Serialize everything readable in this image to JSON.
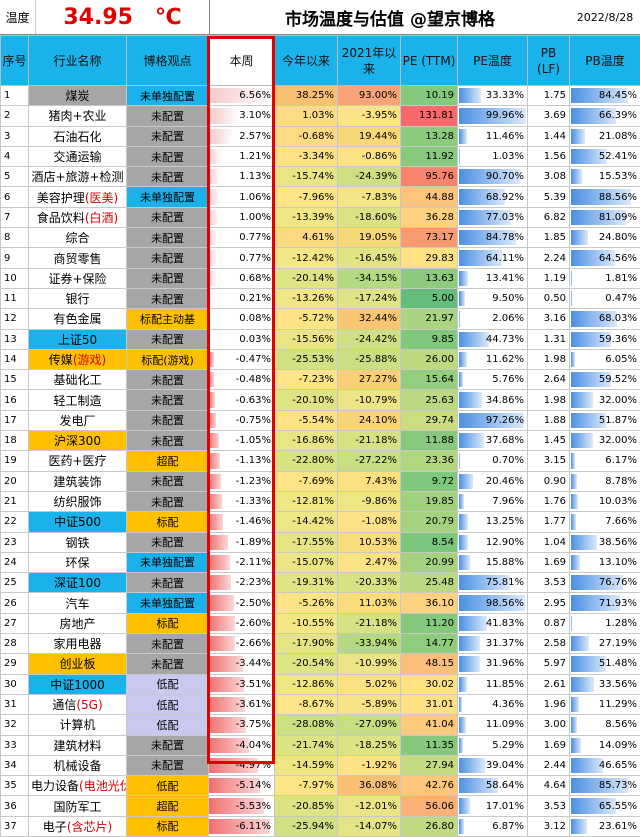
{
  "header": {
    "temp_label": "温度",
    "temp_value": "34.95",
    "temp_unit": "℃",
    "title": "市场温度与估值 @望京博格",
    "date": "2022/8/28"
  },
  "columns": {
    "seq": "序号",
    "industry": "行业名称",
    "view": "博格观点",
    "week": "本周",
    "ytd": "今年以来",
    "since2021": "2021年以来",
    "pe": "PE (TTM)",
    "pe_temp": "PE温度",
    "pb": "PB (LF)",
    "pb_temp": "PB温度"
  },
  "colors": {
    "cyan": "#1ab2ea",
    "orange": "#ffc000",
    "gray": "#a6a6a6",
    "lavender": "#c9c9ef",
    "red": "#e00000"
  },
  "rows": [
    {
      "seq": "1",
      "name": "煤炭",
      "name_red": "",
      "name_bg": "#a6a6a6",
      "view": "未单独配置",
      "view_bg": "#1ab2ea",
      "week": "6.56%",
      "week_v": 6.56,
      "ytd": "38.25%",
      "ytd_bg": "#f8c070",
      "s21": "93.00%",
      "s21_bg": "#f8a37a",
      "pe": "10.19",
      "pe_bg": "#84c97c",
      "pet": "33.33%",
      "pet_v": 33.33,
      "pb": "1.75",
      "pbt": "84.45%",
      "pbt_v": 84.45
    },
    {
      "seq": "2",
      "name": "猪肉+农业",
      "name_red": "",
      "name_bg": "#ffffff",
      "view": "未配置",
      "view_bg": "#a6a6a6",
      "week": "3.10%",
      "week_v": 3.1,
      "ytd": "1.03%",
      "ytd_bg": "#fddb83",
      "s21": "-3.95%",
      "s21_bg": "#fde387",
      "pe": "131.81",
      "pe_bg": "#f8696b",
      "pet": "99.96%",
      "pet_v": 99.96,
      "pb": "3.69",
      "pbt": "66.39%",
      "pbt_v": 66.39
    },
    {
      "seq": "3",
      "name": "石油石化",
      "name_red": "",
      "name_bg": "#ffffff",
      "view": "未配置",
      "view_bg": "#a6a6a6",
      "week": "2.57%",
      "week_v": 2.57,
      "ytd": "-0.68%",
      "ytd_bg": "#fddb83",
      "s21": "19.44%",
      "s21_bg": "#f7d878",
      "pe": "13.28",
      "pe_bg": "#8bcb7e",
      "pet": "11.46%",
      "pet_v": 11.46,
      "pb": "1.44",
      "pbt": "21.08%",
      "pbt_v": 21.08
    },
    {
      "seq": "4",
      "name": "交通运输",
      "name_red": "",
      "name_bg": "#ffffff",
      "view": "未配置",
      "view_bg": "#a6a6a6",
      "week": "1.21%",
      "week_v": 1.21,
      "ytd": "-3.34%",
      "ytd_bg": "#fde186",
      "s21": "-0.86%",
      "s21_bg": "#fde287",
      "pe": "11.92",
      "pe_bg": "#88ca7d",
      "pet": "1.03%",
      "pet_v": 1.03,
      "pb": "1.56",
      "pbt": "52.41%",
      "pbt_v": 52.41
    },
    {
      "seq": "5",
      "name": "酒店+旅游+检测",
      "name_red": "",
      "name_bg": "#ffffff",
      "view": "未配置",
      "view_bg": "#a6a6a6",
      "week": "1.13%",
      "week_v": 1.13,
      "ytd": "-15.74%",
      "ytd_bg": "#eae584",
      "s21": "-24.39%",
      "s21_bg": "#cfe083",
      "pe": "95.76",
      "pe_bg": "#f8846e",
      "pet": "90.70%",
      "pet_v": 90.7,
      "pb": "3.08",
      "pbt": "15.53%",
      "pbt_v": 15.53
    },
    {
      "seq": "6",
      "name": "美容护理",
      "name_red": "(医美)",
      "name_bg": "#ffffff",
      "view": "未单独配置",
      "view_bg": "#1ab2ea",
      "week": "1.06%",
      "week_v": 1.06,
      "ytd": "-7.96%",
      "ytd_bg": "#fde586",
      "s21": "-7.83%",
      "s21_bg": "#f2e487",
      "pe": "44.88",
      "pe_bg": "#fcc47c",
      "pet": "68.92%",
      "pet_v": 68.92,
      "pb": "5.39",
      "pbt": "88.56%",
      "pbt_v": 88.56
    },
    {
      "seq": "7",
      "name": "食品饮料",
      "name_red": "(白酒)",
      "name_bg": "#ffffff",
      "view": "未配置",
      "view_bg": "#a6a6a6",
      "week": "1.00%",
      "week_v": 1.0,
      "ytd": "-13.39%",
      "ytd_bg": "#f0e685",
      "s21": "-18.60%",
      "s21_bg": "#dce284",
      "pe": "36.28",
      "pe_bg": "#fdd17f",
      "pet": "77.03%",
      "pet_v": 77.03,
      "pb": "6.82",
      "pbt": "81.09%",
      "pbt_v": 81.09
    },
    {
      "seq": "8",
      "name": "综合",
      "name_red": "",
      "name_bg": "#ffffff",
      "view": "未配置",
      "view_bg": "#a6a6a6",
      "week": "0.77%",
      "week_v": 0.77,
      "ytd": "4.61%",
      "ytd_bg": "#fdd981",
      "s21": "19.05%",
      "s21_bg": "#f7d878",
      "pe": "73.17",
      "pe_bg": "#f99a72",
      "pet": "84.78%",
      "pet_v": 84.78,
      "pb": "1.85",
      "pbt": "24.80%",
      "pbt_v": 24.8
    },
    {
      "seq": "9",
      "name": "商贸零售",
      "name_red": "",
      "name_bg": "#ffffff",
      "view": "未配置",
      "view_bg": "#a6a6a6",
      "week": "0.77%",
      "week_v": 0.77,
      "ytd": "-12.42%",
      "ytd_bg": "#f2e685",
      "s21": "-16.45%",
      "s21_bg": "#e1e385",
      "pe": "29.83",
      "pe_bg": "#fde182",
      "pet": "64.11%",
      "pet_v": 64.11,
      "pb": "2.24",
      "pbt": "64.56%",
      "pbt_v": 64.56
    },
    {
      "seq": "10",
      "name": "证券+保险",
      "name_red": "",
      "name_bg": "#ffffff",
      "view": "未配置",
      "view_bg": "#a6a6a6",
      "week": "0.68%",
      "week_v": 0.68,
      "ytd": "-20.14%",
      "ytd_bg": "#dfe384",
      "s21": "-34.15%",
      "s21_bg": "#b3d981",
      "pe": "13.63",
      "pe_bg": "#8ccb7e",
      "pet": "13.41%",
      "pet_v": 13.41,
      "pb": "1.19",
      "pbt": "1.81%",
      "pbt_v": 1.81
    },
    {
      "seq": "11",
      "name": "银行",
      "name_red": "",
      "name_bg": "#ffffff",
      "view": "未配置",
      "view_bg": "#a6a6a6",
      "week": "0.21%",
      "week_v": 0.21,
      "ytd": "-13.26%",
      "ytd_bg": "#f0e685",
      "s21": "-17.24%",
      "s21_bg": "#dfe385",
      "pe": "5.00",
      "pe_bg": "#63be7b",
      "pet": "9.50%",
      "pet_v": 9.5,
      "pb": "0.50",
      "pbt": "0.47%",
      "pbt_v": 0.47
    },
    {
      "seq": "12",
      "name": "有色金属",
      "name_red": "",
      "name_bg": "#ffffff",
      "view": "标配主动基",
      "view_bg": "#ffc000",
      "week": "0.08%",
      "week_v": 0.08,
      "ytd": "-5.72%",
      "ytd_bg": "#fde386",
      "s21": "32.44%",
      "s21_bg": "#f8c675",
      "pe": "21.97",
      "pe_bg": "#aad480",
      "pet": "2.06%",
      "pet_v": 2.06,
      "pb": "3.16",
      "pbt": "68.03%",
      "pbt_v": 68.03
    },
    {
      "seq": "13",
      "name": "上证50",
      "name_red": "",
      "name_bg": "#1ab2ea",
      "view": "未配置",
      "view_bg": "#a6a6a6",
      "week": "0.03%",
      "week_v": 0.03,
      "ytd": "-15.56%",
      "ytd_bg": "#eae584",
      "s21": "-24.42%",
      "s21_bg": "#cfe083",
      "pe": "9.85",
      "pe_bg": "#80c87c",
      "pet": "44.73%",
      "pet_v": 44.73,
      "pb": "1.31",
      "pbt": "59.36%",
      "pbt_v": 59.36
    },
    {
      "seq": "14",
      "name": "传媒",
      "name_red": "(游戏)",
      "name_bg": "#ffc000",
      "view": "标配(游戏)",
      "view_bg": "#ffc000",
      "week": "-0.47%",
      "week_v": -0.47,
      "ytd": "-25.53%",
      "ytd_bg": "#d0e183",
      "s21": "-25.88%",
      "s21_bg": "#cbdf82",
      "pe": "26.00",
      "pe_bg": "#bcd980",
      "pet": "11.62%",
      "pet_v": 11.62,
      "pb": "1.98",
      "pbt": "6.05%",
      "pbt_v": 6.05
    },
    {
      "seq": "15",
      "name": "基础化工",
      "name_red": "",
      "name_bg": "#ffffff",
      "view": "未配置",
      "view_bg": "#a6a6a6",
      "week": "-0.48%",
      "week_v": -0.48,
      "ytd": "-7.23%",
      "ytd_bg": "#fde486",
      "s21": "27.27%",
      "s21_bg": "#f8cf77",
      "pe": "15.64",
      "pe_bg": "#93cd7e",
      "pet": "5.76%",
      "pet_v": 5.76,
      "pb": "2.64",
      "pbt": "59.52%",
      "pbt_v": 59.52
    },
    {
      "seq": "16",
      "name": "轻工制造",
      "name_red": "",
      "name_bg": "#ffffff",
      "view": "未配置",
      "view_bg": "#a6a6a6",
      "week": "-0.63%",
      "week_v": -0.63,
      "ytd": "-20.10%",
      "ytd_bg": "#dfe384",
      "s21": "-10.79%",
      "s21_bg": "#ece587",
      "pe": "25.63",
      "pe_bg": "#bad980",
      "pet": "34.86%",
      "pet_v": 34.86,
      "pb": "1.98",
      "pbt": "32.00%",
      "pbt_v": 32.0
    },
    {
      "seq": "17",
      "name": "发电厂",
      "name_red": "",
      "name_bg": "#ffffff",
      "view": "未配置",
      "view_bg": "#a6a6a6",
      "week": "-0.75%",
      "week_v": -0.75,
      "ytd": "-5.54%",
      "ytd_bg": "#fde386",
      "s21": "24.10%",
      "s21_bg": "#f8d377",
      "pe": "29.74",
      "pe_bg": "#cadd81",
      "pet": "97.26%",
      "pet_v": 97.26,
      "pb": "1.88",
      "pbt": "51.87%",
      "pbt_v": 51.87
    },
    {
      "seq": "18",
      "name": "沪深300",
      "name_red": "",
      "name_bg": "#ffc000",
      "view": "未配置",
      "view_bg": "#a6a6a6",
      "week": "-1.05%",
      "week_v": -1.05,
      "ytd": "-16.86%",
      "ytd_bg": "#e7e584",
      "s21": "-21.18%",
      "s21_bg": "#d6e184",
      "pe": "11.88",
      "pe_bg": "#88ca7d",
      "pet": "37.68%",
      "pet_v": 37.68,
      "pb": "1.45",
      "pbt": "32.00%",
      "pbt_v": 32.0
    },
    {
      "seq": "19",
      "name": "医药+医疗",
      "name_red": "",
      "name_bg": "#ffffff",
      "view": "超配",
      "view_bg": "#ffc000",
      "week": "-1.13%",
      "week_v": -1.13,
      "ytd": "-22.80%",
      "ytd_bg": "#d7e283",
      "s21": "-27.22%",
      "s21_bg": "#c7de82",
      "pe": "23.36",
      "pe_bg": "#b0d680",
      "pet": "0.70%",
      "pet_v": 0.7,
      "pb": "3.15",
      "pbt": "6.17%",
      "pbt_v": 6.17
    },
    {
      "seq": "20",
      "name": "建筑装饰",
      "name_red": "",
      "name_bg": "#ffffff",
      "view": "未配置",
      "view_bg": "#a6a6a6",
      "week": "-1.23%",
      "week_v": -1.23,
      "ytd": "-7.69%",
      "ytd_bg": "#fde486",
      "s21": "7.43%",
      "s21_bg": "#fae07f",
      "pe": "9.72",
      "pe_bg": "#80c87c",
      "pet": "20.46%",
      "pet_v": 20.46,
      "pb": "0.90",
      "pbt": "8.78%",
      "pbt_v": 8.78
    },
    {
      "seq": "21",
      "name": "纺织服饰",
      "name_red": "",
      "name_bg": "#ffffff",
      "view": "未配置",
      "view_bg": "#a6a6a6",
      "week": "-1.33%",
      "week_v": -1.33,
      "ytd": "-12.81%",
      "ytd_bg": "#f1e685",
      "s21": "-9.86%",
      "s21_bg": "#eee587",
      "pe": "19.85",
      "pe_bg": "#a1d17f",
      "pet": "7.96%",
      "pet_v": 7.96,
      "pb": "1.76",
      "pbt": "10.03%",
      "pbt_v": 10.03
    },
    {
      "seq": "22",
      "name": "中证500",
      "name_red": "",
      "name_bg": "#1ab2ea",
      "view": "标配",
      "view_bg": "#ffc000",
      "week": "-1.46%",
      "week_v": -1.46,
      "ytd": "-14.42%",
      "ytd_bg": "#eee585",
      "s21": "-1.08%",
      "s21_bg": "#fde287",
      "pe": "20.79",
      "pe_bg": "#a5d27f",
      "pet": "13.25%",
      "pet_v": 13.25,
      "pb": "1.77",
      "pbt": "7.66%",
      "pbt_v": 7.66
    },
    {
      "seq": "23",
      "name": "钢铁",
      "name_red": "",
      "name_bg": "#ffffff",
      "view": "未配置",
      "view_bg": "#a6a6a6",
      "week": "-1.89%",
      "week_v": -1.89,
      "ytd": "-17.55%",
      "ytd_bg": "#e5e484",
      "s21": "10.53%",
      "s21_bg": "#f9dd7d",
      "pe": "8.54",
      "pe_bg": "#7bc67c",
      "pet": "12.90%",
      "pet_v": 12.9,
      "pb": "1.04",
      "pbt": "38.56%",
      "pbt_v": 38.56
    },
    {
      "seq": "24",
      "name": "环保",
      "name_red": "",
      "name_bg": "#ffffff",
      "view": "未单独配置",
      "view_bg": "#1ab2ea",
      "week": "-2.11%",
      "week_v": -2.11,
      "ytd": "-15.07%",
      "ytd_bg": "#ece585",
      "s21": "2.47%",
      "s21_bg": "#fbe284",
      "pe": "20.99",
      "pe_bg": "#a6d27f",
      "pet": "15.88%",
      "pet_v": 15.88,
      "pb": "1.69",
      "pbt": "13.10%",
      "pbt_v": 13.1
    },
    {
      "seq": "25",
      "name": "深证100",
      "name_red": "",
      "name_bg": "#1ab2ea",
      "view": "未配置",
      "view_bg": "#a6a6a6",
      "week": "-2.23%",
      "week_v": -2.23,
      "ytd": "-19.31%",
      "ytd_bg": "#e1e384",
      "s21": "-20.33%",
      "s21_bg": "#d8e284",
      "pe": "25.48",
      "pe_bg": "#b9d880",
      "pet": "75.81%",
      "pet_v": 75.81,
      "pb": "3.53",
      "pbt": "76.76%",
      "pbt_v": 76.76
    },
    {
      "seq": "26",
      "name": "汽车",
      "name_red": "",
      "name_bg": "#ffffff",
      "view": "未单独配置",
      "view_bg": "#1ab2ea",
      "week": "-2.50%",
      "week_v": -2.5,
      "ytd": "-5.26%",
      "ytd_bg": "#fde386",
      "s21": "11.03%",
      "s21_bg": "#f9dd7c",
      "pe": "36.10",
      "pe_bg": "#fdd17f",
      "pet": "98.56%",
      "pet_v": 98.56,
      "pb": "2.95",
      "pbt": "71.93%",
      "pbt_v": 71.93
    },
    {
      "seq": "27",
      "name": "房地产",
      "name_red": "",
      "name_bg": "#ffffff",
      "view": "标配",
      "view_bg": "#ffc000",
      "week": "-2.60%",
      "week_v": -2.6,
      "ytd": "-10.55%",
      "ytd_bg": "#f5e686",
      "s21": "-21.18%",
      "s21_bg": "#d6e184",
      "pe": "11.20",
      "pe_bg": "#85c97d",
      "pet": "41.83%",
      "pet_v": 41.83,
      "pb": "0.87",
      "pbt": "1.28%",
      "pbt_v": 1.28
    },
    {
      "seq": "28",
      "name": "家用电器",
      "name_red": "",
      "name_bg": "#ffffff",
      "view": "未配置",
      "view_bg": "#a6a6a6",
      "week": "-2.66%",
      "week_v": -2.66,
      "ytd": "-17.90%",
      "ytd_bg": "#e4e484",
      "s21": "-33.94%",
      "s21_bg": "#b4d981",
      "pe": "14.77",
      "pe_bg": "#90cc7e",
      "pet": "31.37%",
      "pet_v": 31.37,
      "pb": "2.58",
      "pbt": "27.19%",
      "pbt_v": 27.19
    },
    {
      "seq": "29",
      "name": "创业板",
      "name_red": "",
      "name_bg": "#ffc000",
      "view": "未配置",
      "view_bg": "#a6a6a6",
      "week": "-3.44%",
      "week_v": -3.44,
      "ytd": "-20.54%",
      "ytd_bg": "#dee384",
      "s21": "-10.99%",
      "s21_bg": "#ece587",
      "pe": "48.15",
      "pe_bg": "#fbbf7b",
      "pet": "31.96%",
      "pet_v": 31.96,
      "pb": "5.97",
      "pbt": "51.48%",
      "pbt_v": 51.48
    },
    {
      "seq": "30",
      "name": "中证1000",
      "name_red": "",
      "name_bg": "#1ab2ea",
      "view": "低配",
      "view_bg": "#c9c9ef",
      "week": "-3.51%",
      "week_v": -3.51,
      "ytd": "-12.86%",
      "ytd_bg": "#f1e685",
      "s21": "5.02%",
      "s21_bg": "#fbe182",
      "pe": "30.02",
      "pe_bg": "#fde182",
      "pet": "11.85%",
      "pet_v": 11.85,
      "pb": "2.61",
      "pbt": "33.56%",
      "pbt_v": 33.56
    },
    {
      "seq": "31",
      "name": "通信",
      "name_red": "(5G)",
      "name_bg": "#ffffff",
      "view": "低配",
      "view_bg": "#c9c9ef",
      "week": "-3.61%",
      "week_v": -3.61,
      "ytd": "-8.67%",
      "ytd_bg": "#fce586",
      "s21": "-5.89%",
      "s21_bg": "#f7e387",
      "pe": "31.01",
      "pe_bg": "#fde082",
      "pet": "4.36%",
      "pet_v": 4.36,
      "pb": "1.96",
      "pbt": "11.29%",
      "pbt_v": 11.29
    },
    {
      "seq": "32",
      "name": "计算机",
      "name_red": "",
      "name_bg": "#ffffff",
      "view": "低配",
      "view_bg": "#c9c9ef",
      "week": "-3.75%",
      "week_v": -3.75,
      "ytd": "-28.08%",
      "ytd_bg": "#cae082",
      "s21": "-27.09%",
      "s21_bg": "#c8de82",
      "pe": "41.04",
      "pe_bg": "#fcc97d",
      "pet": "11.09%",
      "pet_v": 11.09,
      "pb": "3.00",
      "pbt": "8.56%",
      "pbt_v": 8.56
    },
    {
      "seq": "33",
      "name": "建筑材料",
      "name_red": "",
      "name_bg": "#ffffff",
      "view": "未配置",
      "view_bg": "#a6a6a6",
      "week": "-4.04%",
      "week_v": -4.04,
      "ytd": "-21.74%",
      "ytd_bg": "#dbe384",
      "s21": "-18.25%",
      "s21_bg": "#dde384",
      "pe": "11.35",
      "pe_bg": "#86c97d",
      "pet": "5.29%",
      "pet_v": 5.29,
      "pb": "1.69",
      "pbt": "14.09%",
      "pbt_v": 14.09
    },
    {
      "seq": "34",
      "name": "机械设备",
      "name_red": "",
      "name_bg": "#ffffff",
      "view": "未配置",
      "view_bg": "#a6a6a6",
      "week": "-4.97%",
      "week_v": -4.97,
      "ytd": "-14.59%",
      "ytd_bg": "#eee585",
      "s21": "-1.92%",
      "s21_bg": "#fde287",
      "pe": "27.94",
      "pe_bg": "#c4db81",
      "pet": "39.04%",
      "pet_v": 39.04,
      "pb": "2.44",
      "pbt": "46.65%",
      "pbt_v": 46.65
    },
    {
      "seq": "35",
      "name": "电力设备",
      "name_red": "(电池光伏)",
      "name_bg": "#ffffff",
      "view": "低配",
      "view_bg": "#ffc000",
      "week": "-5.14%",
      "week_v": -5.14,
      "ytd": "-7.97%",
      "ytd_bg": "#fde586",
      "s21": "36.08%",
      "s21_bg": "#f8c074",
      "pe": "42.76",
      "pe_bg": "#fcc67c",
      "pet": "58.64%",
      "pet_v": 58.64,
      "pb": "4.64",
      "pbt": "85.73%",
      "pbt_v": 85.73
    },
    {
      "seq": "36",
      "name": "国防军工",
      "name_red": "",
      "name_bg": "#ffffff",
      "view": "超配",
      "view_bg": "#ffc000",
      "week": "-5.53%",
      "week_v": -5.53,
      "ytd": "-20.85%",
      "ytd_bg": "#dde384",
      "s21": "-12.01%",
      "s21_bg": "#e9e486",
      "pe": "56.06",
      "pe_bg": "#fab177",
      "pet": "17.01%",
      "pet_v": 17.01,
      "pb": "3.53",
      "pbt": "65.55%",
      "pbt_v": 65.55
    },
    {
      "seq": "37",
      "name": "电子",
      "name_red": "(含芯片)",
      "name_bg": "#ffffff",
      "view": "标配",
      "view_bg": "#ffc000",
      "week": "-6.11%",
      "week_v": -6.11,
      "ytd": "-25.94%",
      "ytd_bg": "#cfe183",
      "s21": "-14.07%",
      "s21_bg": "#e5e485",
      "pe": "26.80",
      "pe_bg": "#bfda81",
      "pet": "6.87%",
      "pet_v": 6.87,
      "pb": "3.12",
      "pbt": "23.61%",
      "pbt_v": 23.61
    }
  ]
}
